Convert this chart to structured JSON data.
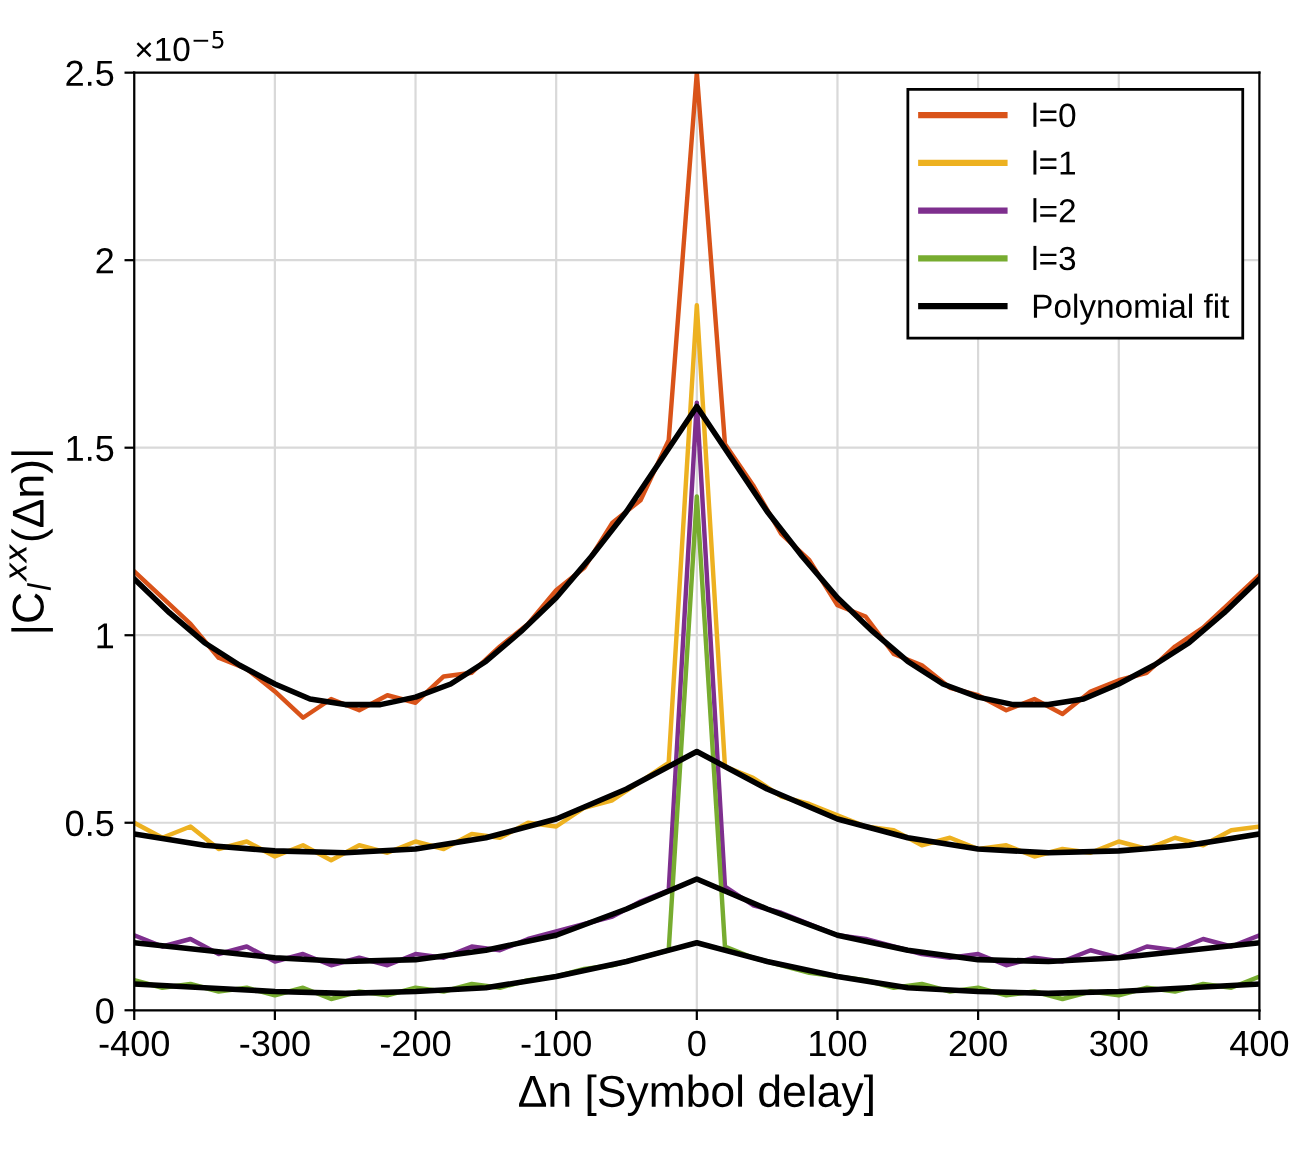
{
  "chart_data": {
    "type": "line",
    "xlabel": "Δn [Symbol delay]",
    "ylabel": "|C$_{l}$$^{xx}$(Δn)|",
    "annotations": [
      "×10$^{−5}$"
    ],
    "xlim": [
      -400,
      400
    ],
    "xticks": [
      -400,
      -300,
      -200,
      -100,
      0,
      100,
      200,
      300,
      400
    ],
    "ylim": [
      0,
      2.5
    ],
    "yticks": [
      0,
      0.5,
      1,
      1.5,
      2,
      2.5
    ],
    "grid": true,
    "legend": "top right",
    "marker": "none",
    "line_style": "solid",
    "series": [
      {
        "name": "l=0",
        "color": "#d95319",
        "x": [
          -400,
          -380,
          -360,
          -340,
          -320,
          -300,
          -280,
          -260,
          -240,
          -220,
          -200,
          -180,
          -160,
          -140,
          -120,
          -100,
          -80,
          -60,
          -40,
          -20,
          0,
          20,
          40,
          60,
          80,
          100,
          120,
          140,
          160,
          180,
          200,
          220,
          240,
          260,
          280,
          300,
          320,
          340,
          360,
          380,
          400
        ],
        "values": [
          1.17,
          1.1,
          1.03,
          0.94,
          0.91,
          0.85,
          0.78,
          0.83,
          0.8,
          0.84,
          0.82,
          0.89,
          0.9,
          0.97,
          1.03,
          1.12,
          1.18,
          1.3,
          1.36,
          1.52,
          2.5,
          1.51,
          1.4,
          1.27,
          1.2,
          1.08,
          1.05,
          0.95,
          0.92,
          0.86,
          0.84,
          0.8,
          0.83,
          0.79,
          0.85,
          0.88,
          0.9,
          0.97,
          1.02,
          1.09,
          1.16
        ]
      },
      {
        "name": "l=1",
        "color": "#edb120",
        "x": [
          -400,
          -380,
          -360,
          -340,
          -320,
          -300,
          -280,
          -260,
          -240,
          -220,
          -200,
          -180,
          -160,
          -140,
          -120,
          -100,
          -80,
          -60,
          -40,
          -20,
          0,
          20,
          40,
          60,
          80,
          100,
          120,
          140,
          160,
          180,
          200,
          220,
          240,
          260,
          280,
          300,
          320,
          340,
          360,
          380,
          400
        ],
        "values": [
          0.5,
          0.46,
          0.49,
          0.43,
          0.45,
          0.41,
          0.44,
          0.4,
          0.44,
          0.42,
          0.45,
          0.43,
          0.47,
          0.46,
          0.5,
          0.49,
          0.54,
          0.56,
          0.61,
          0.66,
          1.88,
          0.65,
          0.62,
          0.57,
          0.55,
          0.52,
          0.49,
          0.48,
          0.44,
          0.46,
          0.43,
          0.44,
          0.41,
          0.43,
          0.42,
          0.45,
          0.43,
          0.46,
          0.44,
          0.48,
          0.49
        ]
      },
      {
        "name": "l=2",
        "color": "#7e2f8e",
        "x": [
          -400,
          -380,
          -360,
          -340,
          -320,
          -300,
          -280,
          -260,
          -240,
          -220,
          -200,
          -180,
          -160,
          -140,
          -120,
          -100,
          -80,
          -60,
          -40,
          -20,
          0,
          20,
          40,
          60,
          80,
          100,
          120,
          140,
          160,
          180,
          200,
          220,
          240,
          260,
          280,
          300,
          320,
          340,
          360,
          380,
          400
        ],
        "values": [
          0.2,
          0.17,
          0.19,
          0.15,
          0.17,
          0.13,
          0.15,
          0.12,
          0.14,
          0.12,
          0.15,
          0.14,
          0.17,
          0.16,
          0.19,
          0.21,
          0.23,
          0.25,
          0.29,
          0.32,
          1.62,
          0.33,
          0.28,
          0.26,
          0.23,
          0.2,
          0.19,
          0.17,
          0.15,
          0.14,
          0.15,
          0.12,
          0.14,
          0.13,
          0.16,
          0.14,
          0.17,
          0.16,
          0.19,
          0.17,
          0.2
        ]
      },
      {
        "name": "l=3",
        "color": "#77ac30",
        "x": [
          -400,
          -380,
          -360,
          -340,
          -320,
          -300,
          -280,
          -260,
          -240,
          -220,
          -200,
          -180,
          -160,
          -140,
          -120,
          -100,
          -80,
          -60,
          -40,
          -20,
          0,
          20,
          40,
          60,
          80,
          100,
          120,
          140,
          160,
          180,
          200,
          220,
          240,
          260,
          280,
          300,
          320,
          340,
          360,
          380,
          400
        ],
        "values": [
          0.08,
          0.06,
          0.07,
          0.05,
          0.06,
          0.04,
          0.06,
          0.03,
          0.05,
          0.04,
          0.06,
          0.05,
          0.07,
          0.06,
          0.08,
          0.09,
          0.11,
          0.12,
          0.14,
          0.16,
          1.37,
          0.17,
          0.14,
          0.12,
          0.1,
          0.09,
          0.08,
          0.06,
          0.07,
          0.05,
          0.06,
          0.04,
          0.05,
          0.03,
          0.05,
          0.04,
          0.06,
          0.05,
          0.07,
          0.06,
          0.09
        ]
      },
      {
        "name": "Polynomial fit",
        "color": "#000000",
        "x": [
          -400,
          -375,
          -350,
          -325,
          -300,
          -275,
          -250,
          -225,
          -200,
          -175,
          -150,
          -125,
          -100,
          -75,
          -50,
          -25,
          0,
          25,
          50,
          75,
          100,
          125,
          150,
          175,
          200,
          225,
          250,
          275,
          300,
          325,
          350,
          375,
          400
        ],
        "values": [
          1.15,
          1.06,
          0.98,
          0.92,
          0.87,
          0.83,
          0.815,
          0.815,
          0.835,
          0.87,
          0.93,
          1.01,
          1.1,
          1.21,
          1.33,
          1.47,
          1.61,
          1.47,
          1.33,
          1.21,
          1.1,
          1.01,
          0.93,
          0.87,
          0.835,
          0.815,
          0.815,
          0.83,
          0.87,
          0.92,
          0.98,
          1.06,
          1.15
        ]
      },
      {
        "color": "#000000",
        "x": [
          -400,
          -350,
          -300,
          -250,
          -200,
          -150,
          -100,
          -50,
          -25,
          0,
          25,
          50,
          100,
          150,
          200,
          250,
          300,
          350,
          400
        ],
        "values": [
          0.47,
          0.44,
          0.425,
          0.42,
          0.43,
          0.46,
          0.51,
          0.59,
          0.64,
          0.69,
          0.64,
          0.59,
          0.51,
          0.46,
          0.43,
          0.42,
          0.425,
          0.44,
          0.47
        ]
      },
      {
        "color": "#000000",
        "x": [
          -400,
          -350,
          -300,
          -250,
          -200,
          -150,
          -100,
          -50,
          -25,
          0,
          25,
          50,
          100,
          150,
          200,
          250,
          300,
          350,
          400
        ],
        "values": [
          0.18,
          0.16,
          0.14,
          0.13,
          0.135,
          0.16,
          0.2,
          0.27,
          0.31,
          0.35,
          0.31,
          0.27,
          0.2,
          0.16,
          0.135,
          0.13,
          0.14,
          0.16,
          0.18
        ]
      },
      {
        "color": "#000000",
        "x": [
          -400,
          -350,
          -300,
          -250,
          -200,
          -150,
          -100,
          -50,
          -25,
          0,
          25,
          50,
          100,
          150,
          200,
          250,
          300,
          350,
          400
        ],
        "values": [
          0.07,
          0.06,
          0.05,
          0.045,
          0.05,
          0.06,
          0.09,
          0.13,
          0.155,
          0.18,
          0.155,
          0.13,
          0.09,
          0.06,
          0.05,
          0.045,
          0.05,
          0.06,
          0.07
        ]
      }
    ]
  }
}
